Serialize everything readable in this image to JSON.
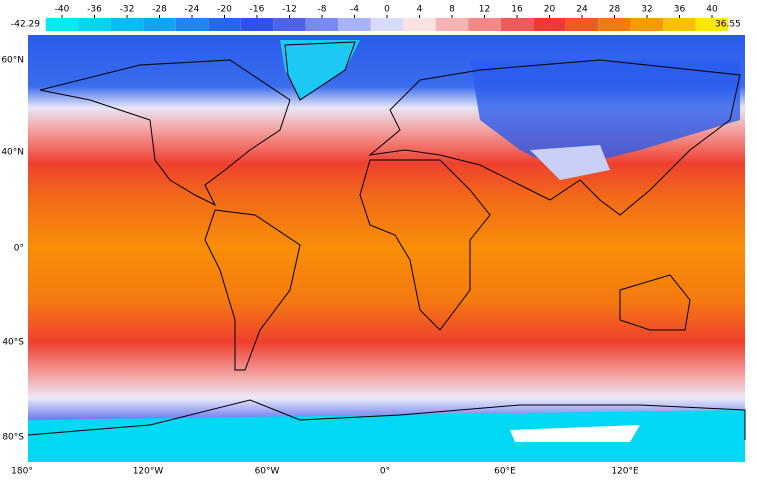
{
  "colorbar": {
    "ticks": [
      -40,
      -36,
      -32,
      -28,
      -24,
      -20,
      -16,
      -12,
      -8,
      -4,
      0,
      4,
      8,
      12,
      16,
      20,
      24,
      28,
      32,
      36,
      40
    ],
    "min": -42.29,
    "max": 36.55,
    "colors": [
      "#00eaf4",
      "#00d4f4",
      "#00bcf4",
      "#13a2f4",
      "#1e86f0",
      "#2468ee",
      "#3050ec",
      "#4f62ee",
      "#7a88f2",
      "#a8b2f6",
      "#d8dcfa",
      "#fde2e2",
      "#f8b4b4",
      "#f48888",
      "#f05a5a",
      "#ee3a30",
      "#f05a20",
      "#f47a10",
      "#f89a08",
      "#fcc000",
      "#fee800"
    ]
  },
  "map": {
    "lat_labels": [
      "60°N",
      "40°N",
      "0°",
      "40°S",
      "80°S"
    ],
    "lon_labels": [
      "180°",
      "120°W",
      "60°W",
      "0°",
      "60°E",
      "120°E"
    ]
  }
}
